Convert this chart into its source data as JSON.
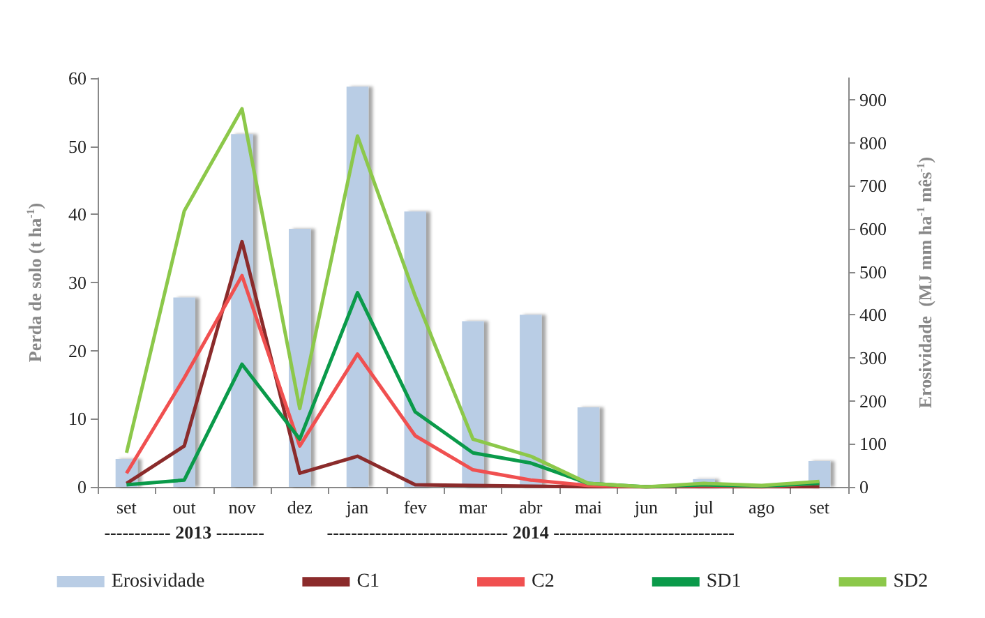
{
  "chart_data": {
    "type": "bar",
    "ylabel": "Perda de solo (t ha$^{-1}$)",
    "y2label": "Erosividade  (MJ mm ha$^{-1}$ mês$^{-1}$)",
    "categories": [
      "set",
      "out",
      "nov",
      "dez",
      "jan",
      "fev",
      "mar",
      "abr",
      "mai",
      "jun",
      "jul",
      "ago",
      "set"
    ],
    "series": [
      {
        "name": "Erosividade",
        "axis": "y2",
        "color": "#b9cde5",
        "values": [
          65,
          440,
          820,
          600,
          930,
          640,
          385,
          400,
          185,
          0,
          18,
          0,
          60
        ]
      },
      {
        "name": "C1",
        "type": "line",
        "color": "#8b2b2b",
        "values": [
          0.5,
          6,
          36,
          2,
          4.5,
          0.3,
          0.2,
          0.1,
          0,
          0,
          0,
          0,
          0
        ]
      },
      {
        "name": "C2",
        "type": "line",
        "color": "#f05050",
        "values": [
          2,
          16,
          31,
          6,
          19.5,
          7.5,
          2.5,
          1,
          0.2,
          0,
          0.2,
          0,
          0.5
        ]
      },
      {
        "name": "SD1",
        "type": "line",
        "color": "#0a9a4a",
        "values": [
          0.3,
          1,
          18,
          7,
          28.5,
          11,
          5,
          3.5,
          0.5,
          0,
          0.3,
          0.1,
          0.5
        ]
      },
      {
        "name": "SD2",
        "type": "line",
        "color": "#8cc84a",
        "values": [
          5,
          40.5,
          55.5,
          11.5,
          51.5,
          28,
          7,
          4.5,
          0.5,
          0,
          0.5,
          0.2,
          0.8
        ]
      }
    ],
    "ylim": [
      0,
      60
    ],
    "yticks": [
      0,
      10,
      20,
      30,
      40,
      50,
      60
    ],
    "y2lim": [
      0,
      950
    ],
    "y2ticks": [
      0,
      100,
      200,
      300,
      400,
      500,
      600,
      700,
      800,
      900
    ],
    "annotations": [
      "----------- 2013 --------",
      "------------------------------ 2014 ------------------------------"
    ],
    "grid": false,
    "legend": "bottom",
    "marker": "none",
    "line_style": "solid"
  }
}
